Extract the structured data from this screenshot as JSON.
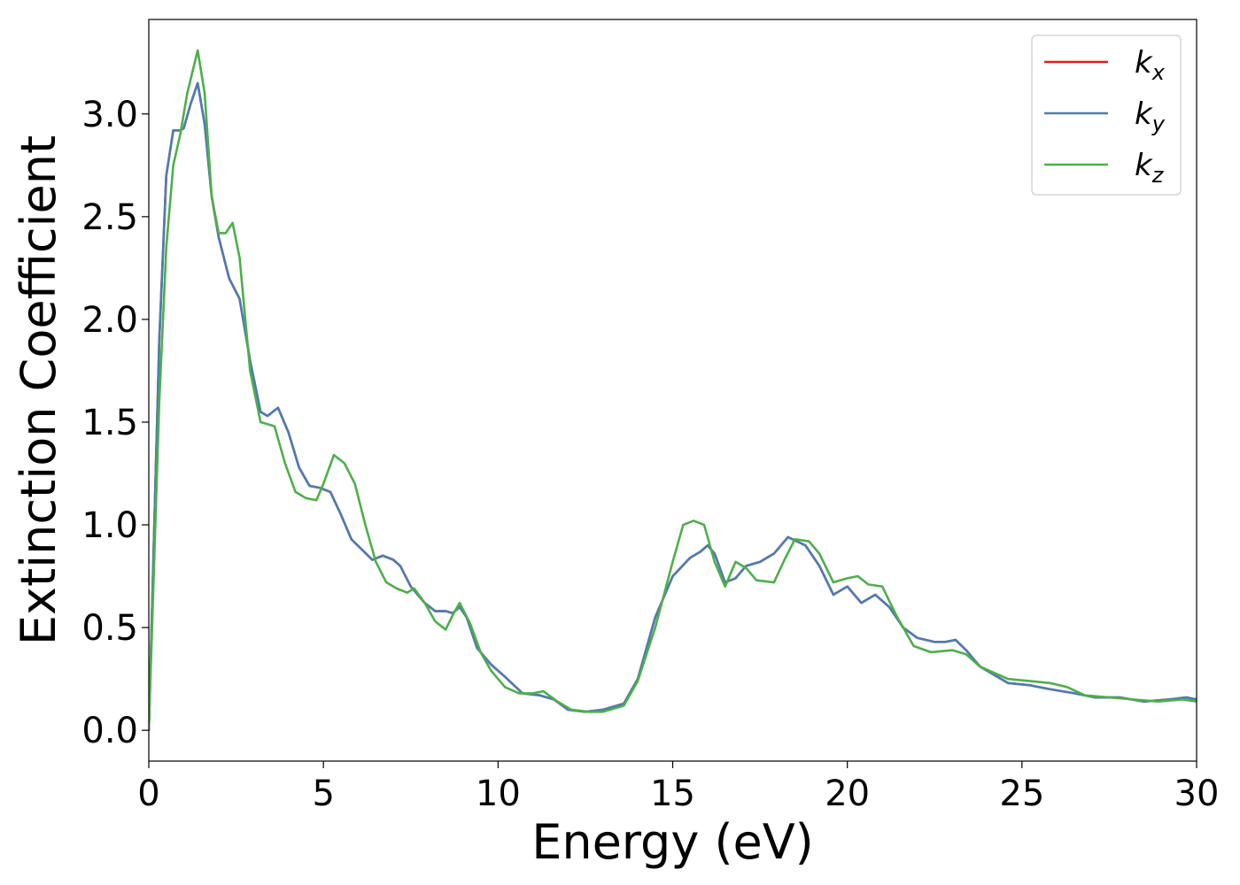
{
  "chart_data": {
    "type": "line",
    "xlabel": "Energy (eV)",
    "ylabel": "Extinction Coefficient",
    "xlim": [
      0,
      30
    ],
    "ylim": [
      -0.15,
      3.46
    ],
    "xticks": [
      0,
      5,
      10,
      15,
      20,
      25,
      30
    ],
    "xtick_labels": [
      "0",
      "5",
      "10",
      "15",
      "20",
      "25",
      "30"
    ],
    "yticks": [
      0.0,
      0.5,
      1.0,
      1.5,
      2.0,
      2.5,
      3.0
    ],
    "ytick_labels": [
      "0.0",
      "0.5",
      "1.0",
      "1.5",
      "2.0",
      "2.5",
      "3.0"
    ],
    "grid": false,
    "legend_position": "top-right",
    "series": [
      {
        "name": "k",
        "subscript": "x",
        "color": "#e41a1c",
        "points": [
          [
            0,
            0
          ],
          [
            0.3,
            1.9
          ],
          [
            0.5,
            2.7
          ],
          [
            0.7,
            2.92
          ],
          [
            0.9,
            2.92
          ],
          [
            1.0,
            2.93
          ],
          [
            1.2,
            3.05
          ],
          [
            1.4,
            3.15
          ],
          [
            1.6,
            2.95
          ],
          [
            1.8,
            2.6
          ],
          [
            2.0,
            2.4
          ],
          [
            2.3,
            2.2
          ],
          [
            2.6,
            2.1
          ],
          [
            2.9,
            1.8
          ],
          [
            3.2,
            1.55
          ],
          [
            3.4,
            1.53
          ],
          [
            3.7,
            1.57
          ],
          [
            4.0,
            1.45
          ],
          [
            4.3,
            1.28
          ],
          [
            4.6,
            1.19
          ],
          [
            4.9,
            1.18
          ],
          [
            5.2,
            1.16
          ],
          [
            5.5,
            1.05
          ],
          [
            5.8,
            0.93
          ],
          [
            6.1,
            0.88
          ],
          [
            6.4,
            0.83
          ],
          [
            6.7,
            0.85
          ],
          [
            7.0,
            0.83
          ],
          [
            7.2,
            0.8
          ],
          [
            7.5,
            0.7
          ],
          [
            7.9,
            0.62
          ],
          [
            8.2,
            0.58
          ],
          [
            8.5,
            0.58
          ],
          [
            8.7,
            0.57
          ],
          [
            8.9,
            0.6
          ],
          [
            9.1,
            0.55
          ],
          [
            9.4,
            0.4
          ],
          [
            9.8,
            0.32
          ],
          [
            10.2,
            0.26
          ],
          [
            10.7,
            0.18
          ],
          [
            11.2,
            0.17
          ],
          [
            11.6,
            0.15
          ],
          [
            12.0,
            0.1
          ],
          [
            12.5,
            0.09
          ],
          [
            13.0,
            0.1
          ],
          [
            13.6,
            0.13
          ],
          [
            14.0,
            0.25
          ],
          [
            14.5,
            0.55
          ],
          [
            15.0,
            0.75
          ],
          [
            15.5,
            0.84
          ],
          [
            15.8,
            0.87
          ],
          [
            16.0,
            0.9
          ],
          [
            16.2,
            0.86
          ],
          [
            16.5,
            0.72
          ],
          [
            16.8,
            0.74
          ],
          [
            17.1,
            0.8
          ],
          [
            17.5,
            0.82
          ],
          [
            17.9,
            0.86
          ],
          [
            18.3,
            0.94
          ],
          [
            18.8,
            0.9
          ],
          [
            19.2,
            0.8
          ],
          [
            19.6,
            0.66
          ],
          [
            20.0,
            0.7
          ],
          [
            20.4,
            0.62
          ],
          [
            20.8,
            0.66
          ],
          [
            21.2,
            0.6
          ],
          [
            21.6,
            0.5
          ],
          [
            22.0,
            0.45
          ],
          [
            22.5,
            0.43
          ],
          [
            22.8,
            0.43
          ],
          [
            23.1,
            0.44
          ],
          [
            23.4,
            0.39
          ],
          [
            23.8,
            0.31
          ],
          [
            24.2,
            0.27
          ],
          [
            24.6,
            0.23
          ],
          [
            25.2,
            0.22
          ],
          [
            25.8,
            0.2
          ],
          [
            26.5,
            0.18
          ],
          [
            27.1,
            0.16
          ],
          [
            27.8,
            0.16
          ],
          [
            28.5,
            0.14
          ],
          [
            29.2,
            0.15
          ],
          [
            29.7,
            0.16
          ],
          [
            30.0,
            0.15
          ]
        ]
      },
      {
        "name": "k",
        "subscript": "y",
        "color": "#4a7eb3",
        "points": [
          [
            0,
            0
          ],
          [
            0.3,
            1.9
          ],
          [
            0.5,
            2.7
          ],
          [
            0.7,
            2.92
          ],
          [
            0.9,
            2.92
          ],
          [
            1.0,
            2.93
          ],
          [
            1.2,
            3.05
          ],
          [
            1.4,
            3.15
          ],
          [
            1.6,
            2.95
          ],
          [
            1.8,
            2.6
          ],
          [
            2.0,
            2.4
          ],
          [
            2.3,
            2.2
          ],
          [
            2.6,
            2.1
          ],
          [
            2.9,
            1.8
          ],
          [
            3.2,
            1.55
          ],
          [
            3.4,
            1.53
          ],
          [
            3.7,
            1.57
          ],
          [
            4.0,
            1.45
          ],
          [
            4.3,
            1.28
          ],
          [
            4.6,
            1.19
          ],
          [
            4.9,
            1.18
          ],
          [
            5.2,
            1.16
          ],
          [
            5.5,
            1.05
          ],
          [
            5.8,
            0.93
          ],
          [
            6.1,
            0.88
          ],
          [
            6.4,
            0.83
          ],
          [
            6.7,
            0.85
          ],
          [
            7.0,
            0.83
          ],
          [
            7.2,
            0.8
          ],
          [
            7.5,
            0.7
          ],
          [
            7.9,
            0.62
          ],
          [
            8.2,
            0.58
          ],
          [
            8.5,
            0.58
          ],
          [
            8.7,
            0.57
          ],
          [
            8.9,
            0.6
          ],
          [
            9.1,
            0.55
          ],
          [
            9.4,
            0.4
          ],
          [
            9.8,
            0.32
          ],
          [
            10.2,
            0.26
          ],
          [
            10.7,
            0.18
          ],
          [
            11.2,
            0.17
          ],
          [
            11.6,
            0.15
          ],
          [
            12.0,
            0.1
          ],
          [
            12.5,
            0.09
          ],
          [
            13.0,
            0.1
          ],
          [
            13.6,
            0.13
          ],
          [
            14.0,
            0.25
          ],
          [
            14.5,
            0.55
          ],
          [
            15.0,
            0.75
          ],
          [
            15.5,
            0.84
          ],
          [
            15.8,
            0.87
          ],
          [
            16.0,
            0.9
          ],
          [
            16.2,
            0.86
          ],
          [
            16.5,
            0.72
          ],
          [
            16.8,
            0.74
          ],
          [
            17.1,
            0.8
          ],
          [
            17.5,
            0.82
          ],
          [
            17.9,
            0.86
          ],
          [
            18.3,
            0.94
          ],
          [
            18.8,
            0.9
          ],
          [
            19.2,
            0.8
          ],
          [
            19.6,
            0.66
          ],
          [
            20.0,
            0.7
          ],
          [
            20.4,
            0.62
          ],
          [
            20.8,
            0.66
          ],
          [
            21.2,
            0.6
          ],
          [
            21.6,
            0.5
          ],
          [
            22.0,
            0.45
          ],
          [
            22.5,
            0.43
          ],
          [
            22.8,
            0.43
          ],
          [
            23.1,
            0.44
          ],
          [
            23.4,
            0.39
          ],
          [
            23.8,
            0.31
          ],
          [
            24.2,
            0.27
          ],
          [
            24.6,
            0.23
          ],
          [
            25.2,
            0.22
          ],
          [
            25.8,
            0.2
          ],
          [
            26.5,
            0.18
          ],
          [
            27.1,
            0.16
          ],
          [
            27.8,
            0.16
          ],
          [
            28.5,
            0.14
          ],
          [
            29.2,
            0.15
          ],
          [
            29.7,
            0.16
          ],
          [
            30.0,
            0.15
          ]
        ]
      },
      {
        "name": "k",
        "subscript": "z",
        "color": "#4daf4a",
        "points": [
          [
            0,
            0
          ],
          [
            0.3,
            1.6
          ],
          [
            0.5,
            2.35
          ],
          [
            0.7,
            2.75
          ],
          [
            0.9,
            2.9
          ],
          [
            1.1,
            3.1
          ],
          [
            1.4,
            3.31
          ],
          [
            1.6,
            3.1
          ],
          [
            1.8,
            2.6
          ],
          [
            2.0,
            2.42
          ],
          [
            2.2,
            2.42
          ],
          [
            2.4,
            2.47
          ],
          [
            2.6,
            2.3
          ],
          [
            2.9,
            1.75
          ],
          [
            3.2,
            1.5
          ],
          [
            3.4,
            1.49
          ],
          [
            3.6,
            1.48
          ],
          [
            3.9,
            1.3
          ],
          [
            4.2,
            1.16
          ],
          [
            4.5,
            1.13
          ],
          [
            4.8,
            1.12
          ],
          [
            5.0,
            1.2
          ],
          [
            5.3,
            1.34
          ],
          [
            5.6,
            1.3
          ],
          [
            5.9,
            1.2
          ],
          [
            6.2,
            1.0
          ],
          [
            6.5,
            0.82
          ],
          [
            6.8,
            0.72
          ],
          [
            7.1,
            0.69
          ],
          [
            7.4,
            0.67
          ],
          [
            7.6,
            0.69
          ],
          [
            7.9,
            0.62
          ],
          [
            8.2,
            0.53
          ],
          [
            8.5,
            0.49
          ],
          [
            8.7,
            0.56
          ],
          [
            8.9,
            0.62
          ],
          [
            9.2,
            0.52
          ],
          [
            9.5,
            0.38
          ],
          [
            9.8,
            0.29
          ],
          [
            10.2,
            0.21
          ],
          [
            10.6,
            0.18
          ],
          [
            11.0,
            0.18
          ],
          [
            11.3,
            0.19
          ],
          [
            11.7,
            0.14
          ],
          [
            12.1,
            0.1
          ],
          [
            12.6,
            0.09
          ],
          [
            13.0,
            0.09
          ],
          [
            13.6,
            0.12
          ],
          [
            14.0,
            0.24
          ],
          [
            14.5,
            0.5
          ],
          [
            15.0,
            0.82
          ],
          [
            15.3,
            1.0
          ],
          [
            15.6,
            1.02
          ],
          [
            15.9,
            1.0
          ],
          [
            16.2,
            0.82
          ],
          [
            16.5,
            0.7
          ],
          [
            16.8,
            0.82
          ],
          [
            17.1,
            0.79
          ],
          [
            17.4,
            0.73
          ],
          [
            17.9,
            0.72
          ],
          [
            18.2,
            0.83
          ],
          [
            18.5,
            0.93
          ],
          [
            18.9,
            0.92
          ],
          [
            19.2,
            0.86
          ],
          [
            19.6,
            0.72
          ],
          [
            20.0,
            0.74
          ],
          [
            20.3,
            0.75
          ],
          [
            20.6,
            0.71
          ],
          [
            21.0,
            0.7
          ],
          [
            21.4,
            0.56
          ],
          [
            21.9,
            0.41
          ],
          [
            22.4,
            0.38
          ],
          [
            23.0,
            0.39
          ],
          [
            23.4,
            0.37
          ],
          [
            23.8,
            0.31
          ],
          [
            24.2,
            0.28
          ],
          [
            24.6,
            0.25
          ],
          [
            25.2,
            0.24
          ],
          [
            25.8,
            0.23
          ],
          [
            26.3,
            0.21
          ],
          [
            26.8,
            0.17
          ],
          [
            27.5,
            0.16
          ],
          [
            28.2,
            0.15
          ],
          [
            28.9,
            0.14
          ],
          [
            29.6,
            0.15
          ],
          [
            30.0,
            0.14
          ]
        ]
      }
    ]
  }
}
